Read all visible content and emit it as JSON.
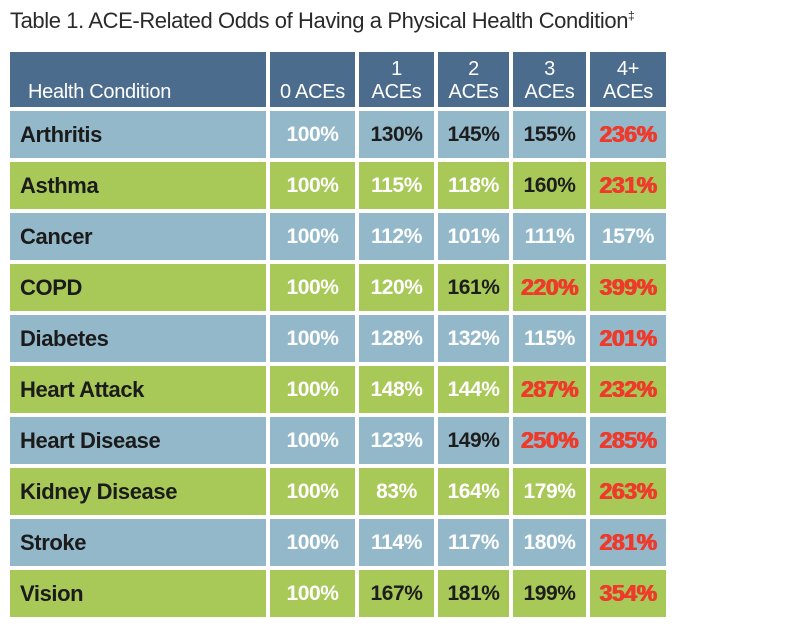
{
  "title": {
    "text": "Table 1. ACE-Related Odds of Having a Physical Health Condition",
    "superscript": "‡"
  },
  "colors": {
    "header_bg": "#4c6c8e",
    "row_blue": "#93b8c9",
    "row_green": "#a8c858",
    "value_white": "#ffffff",
    "value_black": "#1d1d1d",
    "value_red": "#ee3a2b"
  },
  "table": {
    "header": {
      "condition": "Health Condition",
      "columns": [
        {
          "line1": "",
          "line2": "0 ACEs"
        },
        {
          "line1": "1",
          "line2": "ACEs"
        },
        {
          "line1": "2",
          "line2": "ACEs"
        },
        {
          "line1": "3",
          "line2": "ACEs"
        },
        {
          "line1": "4+",
          "line2": "ACEs"
        }
      ]
    },
    "rows": [
      {
        "condition": "Arthritis",
        "values": [
          {
            "text": "100%",
            "color_class": "val-white"
          },
          {
            "text": "130%",
            "color_class": "val-black"
          },
          {
            "text": "145%",
            "color_class": "val-black"
          },
          {
            "text": "155%",
            "color_class": "val-black"
          },
          {
            "text": "236%",
            "color_class": "val-red"
          }
        ]
      },
      {
        "condition": "Asthma",
        "values": [
          {
            "text": "100%",
            "color_class": "val-white"
          },
          {
            "text": "115%",
            "color_class": "val-white"
          },
          {
            "text": "118%",
            "color_class": "val-white"
          },
          {
            "text": "160%",
            "color_class": "val-black"
          },
          {
            "text": "231%",
            "color_class": "val-red"
          }
        ]
      },
      {
        "condition": "Cancer",
        "values": [
          {
            "text": "100%",
            "color_class": "val-white"
          },
          {
            "text": "112%",
            "color_class": "val-white"
          },
          {
            "text": "101%",
            "color_class": "val-white"
          },
          {
            "text": "111%",
            "color_class": "val-white"
          },
          {
            "text": "157%",
            "color_class": "val-white"
          }
        ]
      },
      {
        "condition": "COPD",
        "values": [
          {
            "text": "100%",
            "color_class": "val-white"
          },
          {
            "text": "120%",
            "color_class": "val-white"
          },
          {
            "text": "161%",
            "color_class": "val-black"
          },
          {
            "text": "220%",
            "color_class": "val-red"
          },
          {
            "text": "399%",
            "color_class": "val-red"
          }
        ]
      },
      {
        "condition": "Diabetes",
        "values": [
          {
            "text": "100%",
            "color_class": "val-white"
          },
          {
            "text": "128%",
            "color_class": "val-white"
          },
          {
            "text": "132%",
            "color_class": "val-white"
          },
          {
            "text": "115%",
            "color_class": "val-white"
          },
          {
            "text": "201%",
            "color_class": "val-red"
          }
        ]
      },
      {
        "condition": "Heart Attack",
        "values": [
          {
            "text": "100%",
            "color_class": "val-white"
          },
          {
            "text": "148%",
            "color_class": "val-white"
          },
          {
            "text": "144%",
            "color_class": "val-white"
          },
          {
            "text": "287%",
            "color_class": "val-red"
          },
          {
            "text": "232%",
            "color_class": "val-red"
          }
        ]
      },
      {
        "condition": "Heart Disease",
        "values": [
          {
            "text": "100%",
            "color_class": "val-white"
          },
          {
            "text": "123%",
            "color_class": "val-white"
          },
          {
            "text": "149%",
            "color_class": "val-black"
          },
          {
            "text": "250%",
            "color_class": "val-red"
          },
          {
            "text": "285%",
            "color_class": "val-red"
          }
        ]
      },
      {
        "condition": "Kidney Disease",
        "values": [
          {
            "text": "100%",
            "color_class": "val-white"
          },
          {
            "text": "83%",
            "color_class": "val-white"
          },
          {
            "text": "164%",
            "color_class": "val-white"
          },
          {
            "text": "179%",
            "color_class": "val-white"
          },
          {
            "text": "263%",
            "color_class": "val-red"
          }
        ]
      },
      {
        "condition": "Stroke",
        "values": [
          {
            "text": "100%",
            "color_class": "val-white"
          },
          {
            "text": "114%",
            "color_class": "val-white"
          },
          {
            "text": "117%",
            "color_class": "val-white"
          },
          {
            "text": "180%",
            "color_class": "val-white"
          },
          {
            "text": "281%",
            "color_class": "val-red"
          }
        ]
      },
      {
        "condition": "Vision",
        "values": [
          {
            "text": "100%",
            "color_class": "val-white"
          },
          {
            "text": "167%",
            "color_class": "val-black"
          },
          {
            "text": "181%",
            "color_class": "val-black"
          },
          {
            "text": "199%",
            "color_class": "val-black"
          },
          {
            "text": "354%",
            "color_class": "val-red"
          }
        ]
      }
    ]
  },
  "chart_data": {
    "type": "table",
    "title": "Table 1. ACE-Related Odds of Having a Physical Health Condition",
    "columns": [
      "Health Condition",
      "0 ACEs",
      "1 ACEs",
      "2 ACEs",
      "3 ACEs",
      "4+ ACEs"
    ],
    "rows": [
      [
        "Arthritis",
        "100%",
        "130%",
        "145%",
        "155%",
        "236%"
      ],
      [
        "Asthma",
        "100%",
        "115%",
        "118%",
        "160%",
        "231%"
      ],
      [
        "Cancer",
        "100%",
        "112%",
        "101%",
        "111%",
        "157%"
      ],
      [
        "COPD",
        "100%",
        "120%",
        "161%",
        "220%",
        "399%"
      ],
      [
        "Diabetes",
        "100%",
        "128%",
        "132%",
        "115%",
        "201%"
      ],
      [
        "Heart Attack",
        "100%",
        "148%",
        "144%",
        "287%",
        "232%"
      ],
      [
        "Heart Disease",
        "100%",
        "123%",
        "149%",
        "250%",
        "285%"
      ],
      [
        "Kidney Disease",
        "100%",
        "83%",
        "164%",
        "179%",
        "263%"
      ],
      [
        "Stroke",
        "100%",
        "114%",
        "117%",
        "180%",
        "281%"
      ],
      [
        "Vision",
        "100%",
        "167%",
        "181%",
        "199%",
        "354%"
      ]
    ],
    "red_highlighted_cells": [
      [
        "Arthritis",
        "4+ ACEs"
      ],
      [
        "Asthma",
        "4+ ACEs"
      ],
      [
        "COPD",
        "3 ACEs"
      ],
      [
        "COPD",
        "4+ ACEs"
      ],
      [
        "Diabetes",
        "4+ ACEs"
      ],
      [
        "Heart Attack",
        "3 ACEs"
      ],
      [
        "Heart Attack",
        "4+ ACEs"
      ],
      [
        "Heart Disease",
        "3 ACEs"
      ],
      [
        "Heart Disease",
        "4+ ACEs"
      ],
      [
        "Kidney Disease",
        "4+ ACEs"
      ],
      [
        "Stroke",
        "4+ ACEs"
      ],
      [
        "Vision",
        "4+ ACEs"
      ]
    ]
  }
}
